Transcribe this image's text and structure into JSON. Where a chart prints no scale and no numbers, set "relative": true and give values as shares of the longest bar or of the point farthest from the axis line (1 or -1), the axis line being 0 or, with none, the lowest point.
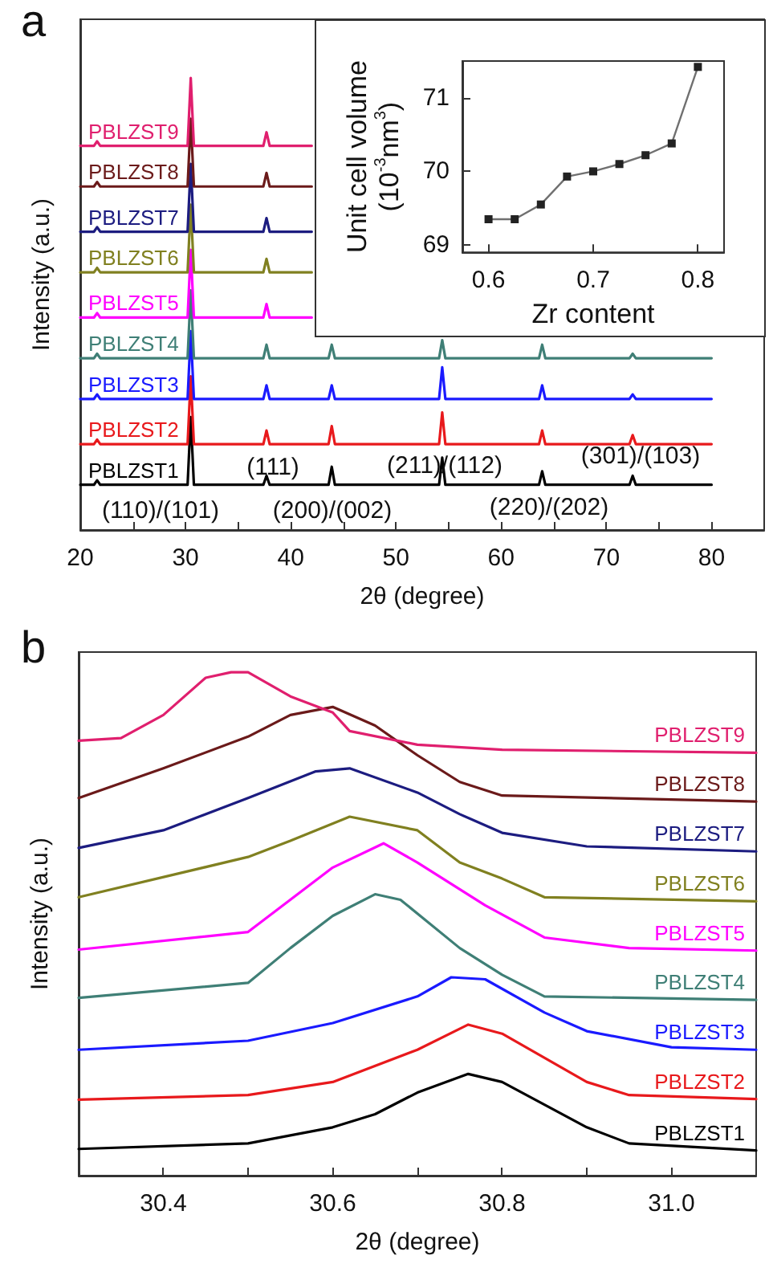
{
  "chart_data": [
    {
      "type": "line",
      "title": "a",
      "xlabel": "2θ (degree)",
      "ylabel": "Intensity (a.u.)",
      "relative": true,
      "marker": "none",
      "xlim": [
        20,
        85
      ],
      "xticks": [
        20,
        {
          "value": 25,
          "label": null
        },
        30,
        {
          "value": 35,
          "label": null
        },
        40,
        {
          "value": 45,
          "label": null
        },
        50,
        {
          "value": 55,
          "label": null
        },
        60,
        {
          "value": 65,
          "label": null
        },
        70,
        {
          "value": 75,
          "label": null
        },
        80
      ],
      "x": [
        20,
        21.3,
        21.6,
        21.9,
        30.2,
        30.5,
        30.8,
        37.4,
        37.7,
        38.0,
        42,
        43.6,
        43.9,
        44.2,
        54.1,
        54.4,
        54.7,
        63.6,
        63.9,
        64.2,
        72.2,
        72.5,
        72.8,
        80
      ],
      "annotations": [
        "(110)/(101)",
        "(111)",
        "(200)/(002)",
        "(211)/(112)",
        "(220)/(202)",
        "(301)/(103)"
      ],
      "series": [
        {
          "name": "PBLZST1",
          "color": "#000000",
          "values": [
            0.1,
            0.1,
            0.11,
            0.1,
            0.1,
            0.25,
            0.1,
            0.1,
            0.12,
            0.1,
            0.1,
            0.1,
            0.14,
            0.1,
            0.1,
            0.16,
            0.1,
            0.1,
            0.13,
            0.1,
            0.1,
            0.12,
            0.1,
            0.1
          ]
        },
        {
          "name": "PBLZST2",
          "color": "#e8191c",
          "values": [
            0.19,
            0.19,
            0.2,
            0.19,
            0.19,
            0.34,
            0.19,
            0.19,
            0.22,
            0.19,
            0.19,
            0.19,
            0.23,
            0.19,
            0.19,
            0.26,
            0.19,
            0.19,
            0.22,
            0.19,
            0.19,
            0.21,
            0.19,
            0.19
          ]
        },
        {
          "name": "PBLZST3",
          "color": "#1a1aff",
          "values": [
            0.29,
            0.29,
            0.3,
            0.29,
            0.29,
            0.44,
            0.29,
            0.29,
            0.32,
            0.29,
            0.29,
            0.29,
            0.32,
            0.29,
            0.29,
            0.36,
            0.29,
            0.29,
            0.32,
            0.29,
            0.29,
            0.3,
            0.29,
            0.29
          ]
        },
        {
          "name": "PBLZST4",
          "color": "#3f7f76",
          "values": [
            0.38,
            0.38,
            0.39,
            0.38,
            0.38,
            0.53,
            0.38,
            0.38,
            0.41,
            0.38,
            0.38,
            0.38,
            0.41,
            0.38,
            0.38,
            0.42,
            0.38,
            0.38,
            0.41,
            0.38,
            0.38,
            0.39,
            0.38,
            0.38
          ]
        },
        {
          "name": "PBLZST5",
          "color": "#ff00ff",
          "values": [
            0.47,
            0.47,
            0.48,
            0.47,
            0.47,
            0.62,
            0.47,
            0.47,
            0.5,
            0.47,
            0.47,
            null,
            null,
            null,
            null,
            null,
            null,
            null,
            null,
            null,
            null,
            null,
            null,
            null
          ]
        },
        {
          "name": "PBLZST6",
          "color": "#808020",
          "values": [
            0.57,
            0.57,
            0.58,
            0.57,
            0.57,
            0.72,
            0.57,
            0.57,
            0.6,
            0.57,
            0.57,
            null,
            null,
            null,
            null,
            null,
            null,
            null,
            null,
            null,
            null,
            null,
            null,
            null
          ]
        },
        {
          "name": "PBLZST7",
          "color": "#1c1c80",
          "values": [
            0.66,
            0.66,
            0.67,
            0.66,
            0.66,
            0.81,
            0.66,
            0.66,
            0.69,
            0.66,
            0.66,
            null,
            null,
            null,
            null,
            null,
            null,
            null,
            null,
            null,
            null,
            null,
            null,
            null
          ]
        },
        {
          "name": "PBLZST8",
          "color": "#6b1a1a",
          "values": [
            0.76,
            0.76,
            0.77,
            0.76,
            0.76,
            0.91,
            0.76,
            0.76,
            0.79,
            0.76,
            0.76,
            null,
            null,
            null,
            null,
            null,
            null,
            null,
            null,
            null,
            null,
            null,
            null,
            null
          ]
        },
        {
          "name": "PBLZST9",
          "color": "#e01f6e",
          "values": [
            0.85,
            0.85,
            0.86,
            0.85,
            0.85,
            1.0,
            0.85,
            0.85,
            0.88,
            0.85,
            0.85,
            null,
            null,
            null,
            null,
            null,
            null,
            null,
            null,
            null,
            null,
            null,
            null,
            null
          ]
        }
      ]
    },
    {
      "type": "line",
      "xlabel": "Zr content",
      "ylabel": "Unit cell volume\n(10$^{-3}$nm$^{3}$)",
      "marker": "square",
      "xlim": [
        0.575,
        0.825
      ],
      "xticks": [
        0.6,
        0.7,
        0.8
      ],
      "ylim": [
        68.9,
        71.5
      ],
      "yticks": [
        69,
        70,
        71
      ],
      "x": [
        0.6,
        0.625,
        0.65,
        0.675,
        0.7,
        0.725,
        0.75,
        0.775,
        0.8
      ],
      "series": [
        {
          "color": "#707070",
          "values": [
            69.35,
            69.35,
            69.55,
            69.93,
            70.0,
            70.1,
            70.22,
            70.38,
            71.42
          ]
        }
      ]
    },
    {
      "type": "line",
      "title": "b",
      "xlabel": "2θ (degree)",
      "ylabel": "Intensity (a.u.)",
      "relative": true,
      "marker": "none",
      "xlim": [
        30.3,
        31.1
      ],
      "xticks": [
        30.4,
        {
          "value": 30.5,
          "label": null
        },
        30.6,
        {
          "value": 30.7,
          "label": null
        },
        30.8,
        {
          "value": 30.9,
          "label": null
        },
        {
          "value": 31,
          "label": "31.0"
        }
      ],
      "series": [
        {
          "name": "PBLZST1",
          "color": "#000000",
          "x": [
            30.3,
            30.5,
            30.6,
            30.65,
            30.7,
            30.76,
            30.8,
            30.9,
            30.95,
            31.1
          ],
          "values": [
            0.053,
            0.064,
            0.096,
            0.122,
            0.165,
            0.202,
            0.186,
            0.096,
            0.064,
            0.05
          ]
        },
        {
          "name": "PBLZST2",
          "color": "#e8191c",
          "x": [
            30.3,
            30.5,
            30.6,
            30.7,
            30.76,
            30.8,
            30.9,
            30.95,
            31.1
          ],
          "values": [
            0.151,
            0.16,
            0.186,
            0.25,
            0.3,
            0.282,
            0.186,
            0.16,
            0.152
          ]
        },
        {
          "name": "PBLZST3",
          "color": "#1a1aff",
          "x": [
            30.3,
            30.5,
            30.6,
            30.7,
            30.74,
            30.78,
            30.85,
            30.9,
            31.0,
            31.1
          ],
          "values": [
            0.25,
            0.268,
            0.303,
            0.356,
            0.394,
            0.39,
            0.324,
            0.287,
            0.255,
            0.25
          ]
        },
        {
          "name": "PBLZST4",
          "color": "#3f7f76",
          "x": [
            30.3,
            30.5,
            30.55,
            30.6,
            30.65,
            30.68,
            30.75,
            30.8,
            30.85,
            31.1
          ],
          "values": [
            0.353,
            0.383,
            0.452,
            0.516,
            0.559,
            0.548,
            0.452,
            0.399,
            0.356,
            0.349
          ]
        },
        {
          "name": "PBLZST5",
          "color": "#ff00ff",
          "x": [
            30.3,
            30.5,
            30.6,
            30.66,
            30.7,
            30.78,
            30.85,
            30.95,
            31.1
          ],
          "values": [
            0.449,
            0.484,
            0.612,
            0.66,
            0.622,
            0.537,
            0.473,
            0.452,
            0.447
          ]
        },
        {
          "name": "PBLZST6",
          "color": "#808020",
          "x": [
            30.3,
            30.5,
            30.55,
            30.62,
            30.7,
            30.75,
            30.8,
            30.85,
            31.1
          ],
          "values": [
            0.553,
            0.633,
            0.665,
            0.713,
            0.686,
            0.622,
            0.59,
            0.553,
            0.545
          ]
        },
        {
          "name": "PBLZST7",
          "color": "#1c1c80",
          "x": [
            30.3,
            30.4,
            30.5,
            30.58,
            30.62,
            30.7,
            30.75,
            30.8,
            30.9,
            31.1
          ],
          "values": [
            0.651,
            0.686,
            0.75,
            0.803,
            0.809,
            0.761,
            0.718,
            0.681,
            0.654,
            0.644
          ]
        },
        {
          "name": "PBLZST8",
          "color": "#6b1a1a",
          "x": [
            30.3,
            30.4,
            30.5,
            30.55,
            30.6,
            30.65,
            30.7,
            30.75,
            30.8,
            31.1
          ],
          "values": [
            0.75,
            0.809,
            0.872,
            0.915,
            0.931,
            0.894,
            0.835,
            0.782,
            0.755,
            0.743
          ]
        },
        {
          "name": "PBLZST9",
          "color": "#e01f6e",
          "x": [
            30.3,
            30.35,
            30.4,
            30.45,
            30.48,
            30.5,
            30.55,
            30.6,
            30.62,
            30.7,
            30.8,
            31.1
          ],
          "values": [
            0.864,
            0.869,
            0.915,
            0.989,
            1.0,
            1.0,
            0.952,
            0.92,
            0.883,
            0.856,
            0.846,
            0.84
          ]
        }
      ]
    }
  ]
}
